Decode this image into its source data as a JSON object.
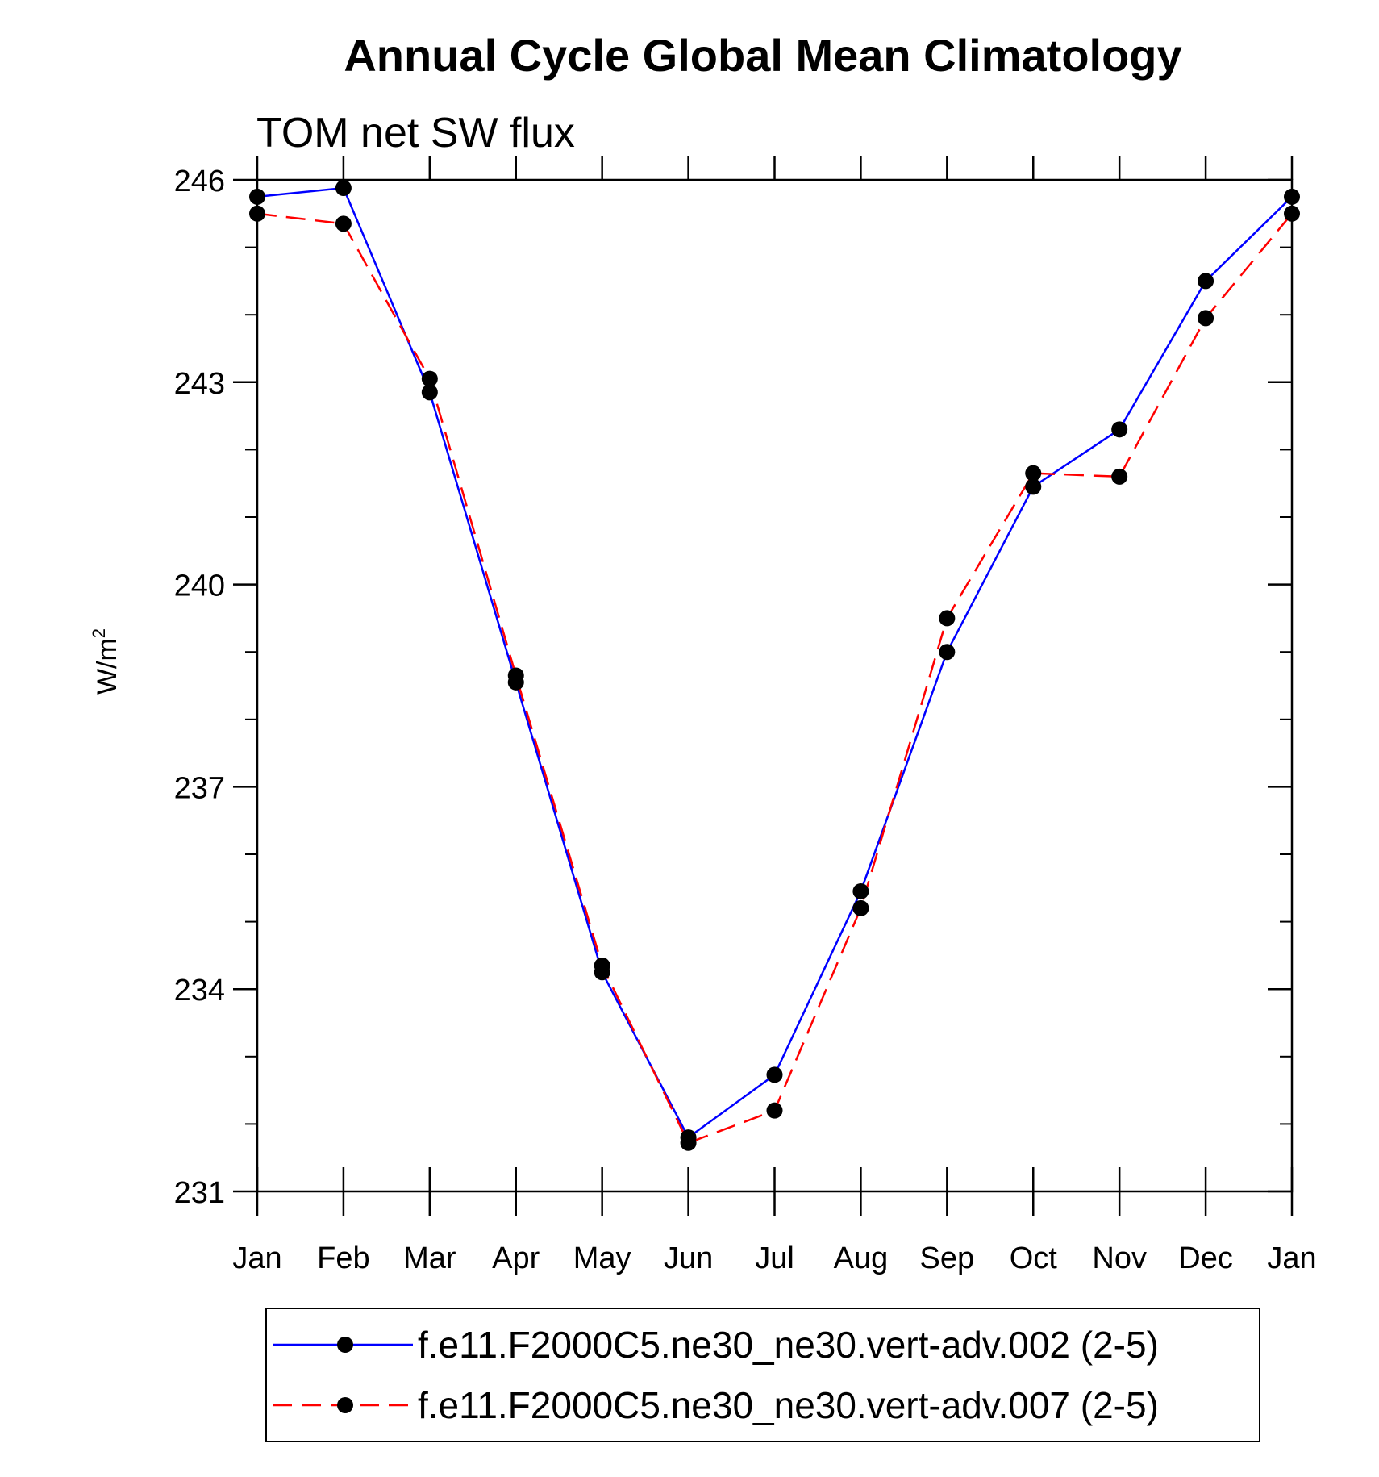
{
  "chart_data": {
    "type": "line",
    "title": "Annual Cycle Global Mean Climatology",
    "subtitle": "TOM net SW flux",
    "xlabel": "",
    "ylabel": "W/m",
    "ylabel_superscript": "2",
    "categories": [
      "Jan",
      "Feb",
      "Mar",
      "Apr",
      "May",
      "Jun",
      "Jul",
      "Aug",
      "Sep",
      "Oct",
      "Nov",
      "Dec",
      "Jan"
    ],
    "yticks": [
      231,
      234,
      237,
      240,
      243,
      246
    ],
    "ylim": [
      231,
      246
    ],
    "grid": false,
    "legend_position": "bottom",
    "series": [
      {
        "name": "f.e11.F2000C5.ne30_ne30.vert-adv.002 (2-5)",
        "color": "#0000ff",
        "dash": "solid",
        "values": [
          245.75,
          245.88,
          242.85,
          238.55,
          234.25,
          231.8,
          232.73,
          235.45,
          239.0,
          241.45,
          242.3,
          244.5,
          245.75
        ]
      },
      {
        "name": "f.e11.F2000C5.ne30_ne30.vert-adv.007 (2-5)",
        "color": "#ff0000",
        "dash": "dashed",
        "values": [
          245.5,
          245.35,
          243.05,
          238.65,
          234.35,
          231.72,
          232.2,
          235.2,
          239.5,
          241.65,
          241.6,
          243.95,
          245.5
        ]
      }
    ]
  }
}
